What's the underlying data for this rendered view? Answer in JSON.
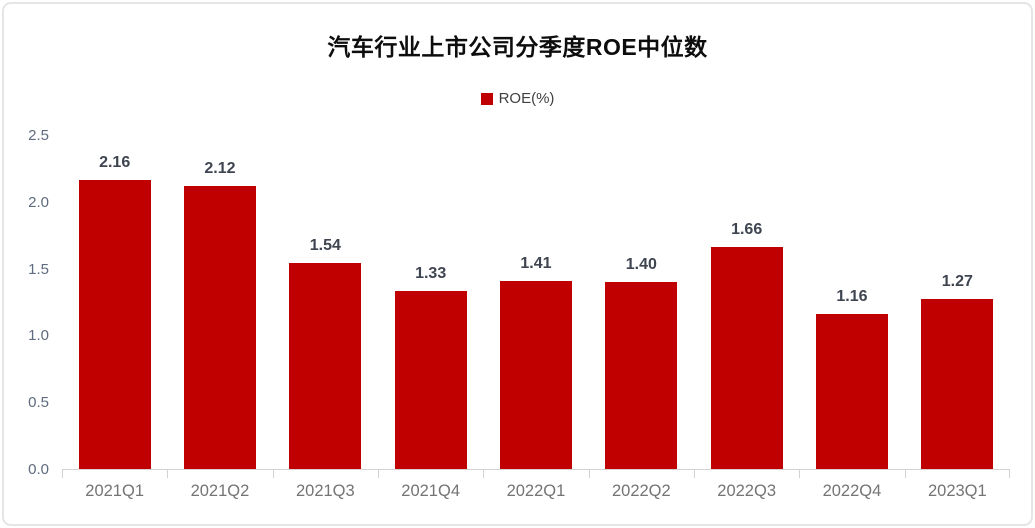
{
  "chart": {
    "title": "汽车行业上市公司分季度ROE中位数",
    "legend": {
      "label": "ROE(%)",
      "swatch_color": "#c00000"
    }
  },
  "chart_data": {
    "type": "bar",
    "title": "汽车行业上市公司分季度ROE中位数",
    "categories": [
      "2021Q1",
      "2021Q2",
      "2021Q3",
      "2021Q4",
      "2022Q1",
      "2022Q2",
      "2022Q3",
      "2022Q4",
      "2023Q1"
    ],
    "series": [
      {
        "name": "ROE(%)",
        "values": [
          2.16,
          2.12,
          1.54,
          1.33,
          1.41,
          1.4,
          1.66,
          1.16,
          1.27
        ],
        "value_labels": [
          "2.16",
          "2.12",
          "1.54",
          "1.33",
          "1.41",
          "1.40",
          "1.66",
          "1.16",
          "1.27"
        ],
        "color": "#c00000"
      }
    ],
    "xlabel": "",
    "ylabel": "",
    "ylim": [
      0,
      2.5
    ],
    "ytick_labels": [
      "0.0",
      "0.5",
      "1.0",
      "1.5",
      "2.0",
      "2.5"
    ],
    "grid": false,
    "legend_position": "top-center",
    "background": "#ffffff"
  },
  "colors": {
    "bar": "#c00000",
    "title_text": "#0d0d0d",
    "value_label_text": "#3f4550",
    "y_axis_text": "#5f6b7e",
    "x_axis_text": "#747474",
    "axis_line": "#d2d2d2",
    "card_border": "#e5e5e5"
  }
}
